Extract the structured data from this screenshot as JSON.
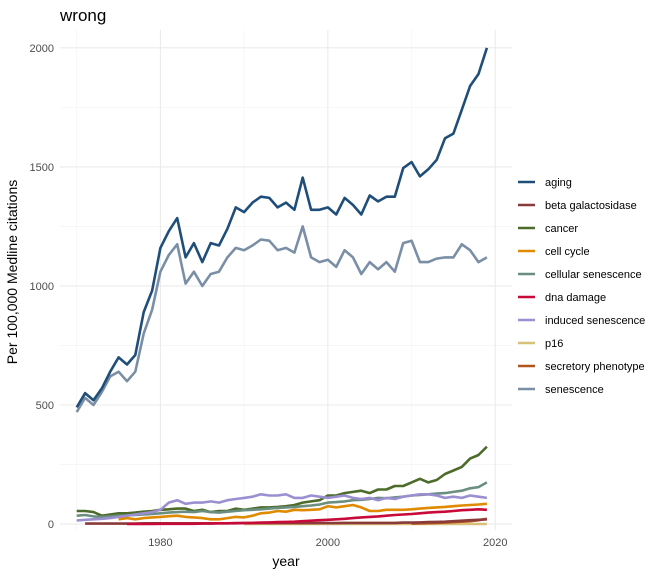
{
  "chart_data": {
    "type": "line",
    "title": "wrong",
    "xlabel": "year",
    "ylabel": "Per 100,000 Medline citations",
    "xlim": [
      1968,
      2022
    ],
    "ylim": [
      -25,
      2075
    ],
    "x_ticks": [
      1980,
      2000,
      2020
    ],
    "y_ticks": [
      0,
      500,
      1000,
      1500,
      2000
    ],
    "x_minor_ticks": [
      1970,
      1990,
      2010
    ],
    "y_minor_ticks": [
      250,
      750,
      1250,
      1750
    ],
    "grid": true,
    "legend_position": "right",
    "x": [
      1970,
      1971,
      1972,
      1973,
      1974,
      1975,
      1976,
      1977,
      1978,
      1979,
      1980,
      1981,
      1982,
      1983,
      1984,
      1985,
      1986,
      1987,
      1988,
      1989,
      1990,
      1991,
      1992,
      1993,
      1994,
      1995,
      1996,
      1997,
      1998,
      1999,
      2000,
      2001,
      2002,
      2003,
      2004,
      2005,
      2006,
      2007,
      2008,
      2009,
      2010,
      2011,
      2012,
      2013,
      2014,
      2015,
      2016,
      2017,
      2018,
      2019
    ],
    "series": [
      {
        "name": "aging",
        "color": "#1f4e79",
        "values": [
          490,
          550,
          520,
          570,
          640,
          700,
          670,
          710,
          890,
          980,
          1160,
          1230,
          1285,
          1120,
          1180,
          1100,
          1180,
          1170,
          1240,
          1330,
          1310,
          1350,
          1375,
          1370,
          1330,
          1350,
          1320,
          1455,
          1320,
          1320,
          1330,
          1300,
          1370,
          1340,
          1300,
          1380,
          1355,
          1375,
          1375,
          1495,
          1520,
          1460,
          1490,
          1530,
          1620,
          1640,
          1740,
          1840,
          1890,
          2000
        ]
      },
      {
        "name": "beta galactosidase",
        "color": "#8b3a3a",
        "values": [
          null,
          2,
          2,
          2,
          2,
          2,
          2,
          2,
          3,
          3,
          3,
          3,
          3,
          3,
          3,
          3,
          3,
          3,
          3,
          3,
          4,
          4,
          4,
          4,
          4,
          4,
          4,
          4,
          4,
          4,
          4,
          4,
          5,
          5,
          5,
          5,
          5,
          5,
          5,
          6,
          6,
          7,
          8,
          9,
          10,
          12,
          14,
          16,
          18,
          20
        ]
      },
      {
        "name": "cancer",
        "color": "#4d6b2a",
        "values": [
          55,
          55,
          50,
          35,
          40,
          45,
          45,
          48,
          52,
          55,
          60,
          62,
          65,
          65,
          55,
          60,
          50,
          55,
          55,
          65,
          60,
          65,
          70,
          70,
          72,
          75,
          80,
          90,
          95,
          100,
          120,
          120,
          130,
          135,
          140,
          130,
          145,
          145,
          160,
          160,
          175,
          190,
          175,
          185,
          210,
          225,
          240,
          275,
          290,
          325
        ]
      },
      {
        "name": "cell cycle",
        "color": "#e08a00",
        "values": [
          null,
          null,
          null,
          null,
          null,
          20,
          25,
          20,
          25,
          28,
          30,
          33,
          35,
          30,
          28,
          25,
          20,
          20,
          25,
          30,
          28,
          35,
          45,
          48,
          55,
          52,
          60,
          58,
          60,
          62,
          75,
          70,
          75,
          80,
          70,
          55,
          55,
          60,
          60,
          60,
          62,
          65,
          68,
          70,
          72,
          75,
          78,
          80,
          82,
          85
        ]
      },
      {
        "name": "cellular senescence",
        "color": "#6a8e7f",
        "values": [
          35,
          38,
          32,
          30,
          32,
          35,
          36,
          38,
          40,
          42,
          45,
          48,
          50,
          52,
          50,
          55,
          50,
          48,
          52,
          55,
          58,
          60,
          62,
          65,
          68,
          70,
          72,
          75,
          78,
          82,
          90,
          92,
          95,
          100,
          102,
          105,
          110,
          108,
          112,
          115,
          120,
          122,
          125,
          128,
          130,
          135,
          140,
          150,
          155,
          175
        ]
      },
      {
        "name": "dna damage",
        "color": "#c80a3a",
        "values": [
          null,
          null,
          null,
          null,
          null,
          null,
          0,
          0,
          0,
          0,
          1,
          1,
          1,
          1,
          1,
          2,
          2,
          3,
          3,
          4,
          4,
          5,
          6,
          7,
          8,
          9,
          10,
          12,
          14,
          16,
          18,
          20,
          22,
          25,
          28,
          30,
          32,
          35,
          38,
          40,
          42,
          45,
          48,
          50,
          52,
          55,
          58,
          60,
          62,
          60
        ]
      },
      {
        "name": "induced senescence",
        "color": "#9b8fd2",
        "values": [
          15,
          18,
          20,
          22,
          25,
          30,
          35,
          40,
          45,
          50,
          60,
          90,
          100,
          85,
          90,
          90,
          95,
          90,
          100,
          105,
          110,
          115,
          125,
          120,
          120,
          125,
          110,
          110,
          120,
          115,
          110,
          115,
          120,
          110,
          105,
          110,
          100,
          110,
          105,
          115,
          120,
          125,
          125,
          120,
          110,
          115,
          110,
          120,
          115,
          110
        ]
      },
      {
        "name": "p16",
        "color": "#d8c07a",
        "values": [
          null,
          null,
          null,
          null,
          null,
          null,
          null,
          null,
          null,
          null,
          null,
          null,
          null,
          null,
          null,
          null,
          null,
          null,
          null,
          null,
          0,
          0,
          0,
          0,
          0,
          0,
          0,
          0,
          0,
          0,
          0,
          0,
          0,
          0,
          0,
          0,
          0,
          0,
          0,
          0,
          0,
          0,
          0,
          0,
          0,
          0,
          0,
          0,
          0,
          0
        ]
      },
      {
        "name": "secretory phenotype",
        "color": "#b3541e",
        "values": [
          null,
          null,
          null,
          null,
          null,
          null,
          null,
          null,
          null,
          null,
          null,
          null,
          null,
          null,
          null,
          null,
          null,
          null,
          null,
          null,
          null,
          null,
          null,
          null,
          null,
          null,
          null,
          null,
          null,
          null,
          null,
          null,
          null,
          null,
          null,
          null,
          null,
          null,
          null,
          null,
          2,
          3,
          4,
          5,
          6,
          8,
          10,
          12,
          16,
          22
        ]
      },
      {
        "name": "senescence",
        "color": "#7a8fa6",
        "values": [
          470,
          530,
          500,
          555,
          620,
          640,
          600,
          640,
          800,
          900,
          1060,
          1130,
          1175,
          1010,
          1060,
          1000,
          1050,
          1060,
          1120,
          1160,
          1150,
          1170,
          1195,
          1190,
          1150,
          1160,
          1140,
          1250,
          1120,
          1100,
          1110,
          1080,
          1150,
          1120,
          1050,
          1100,
          1070,
          1100,
          1060,
          1180,
          1190,
          1100,
          1100,
          1115,
          1120,
          1120,
          1175,
          1150,
          1100,
          1120
        ]
      }
    ]
  }
}
